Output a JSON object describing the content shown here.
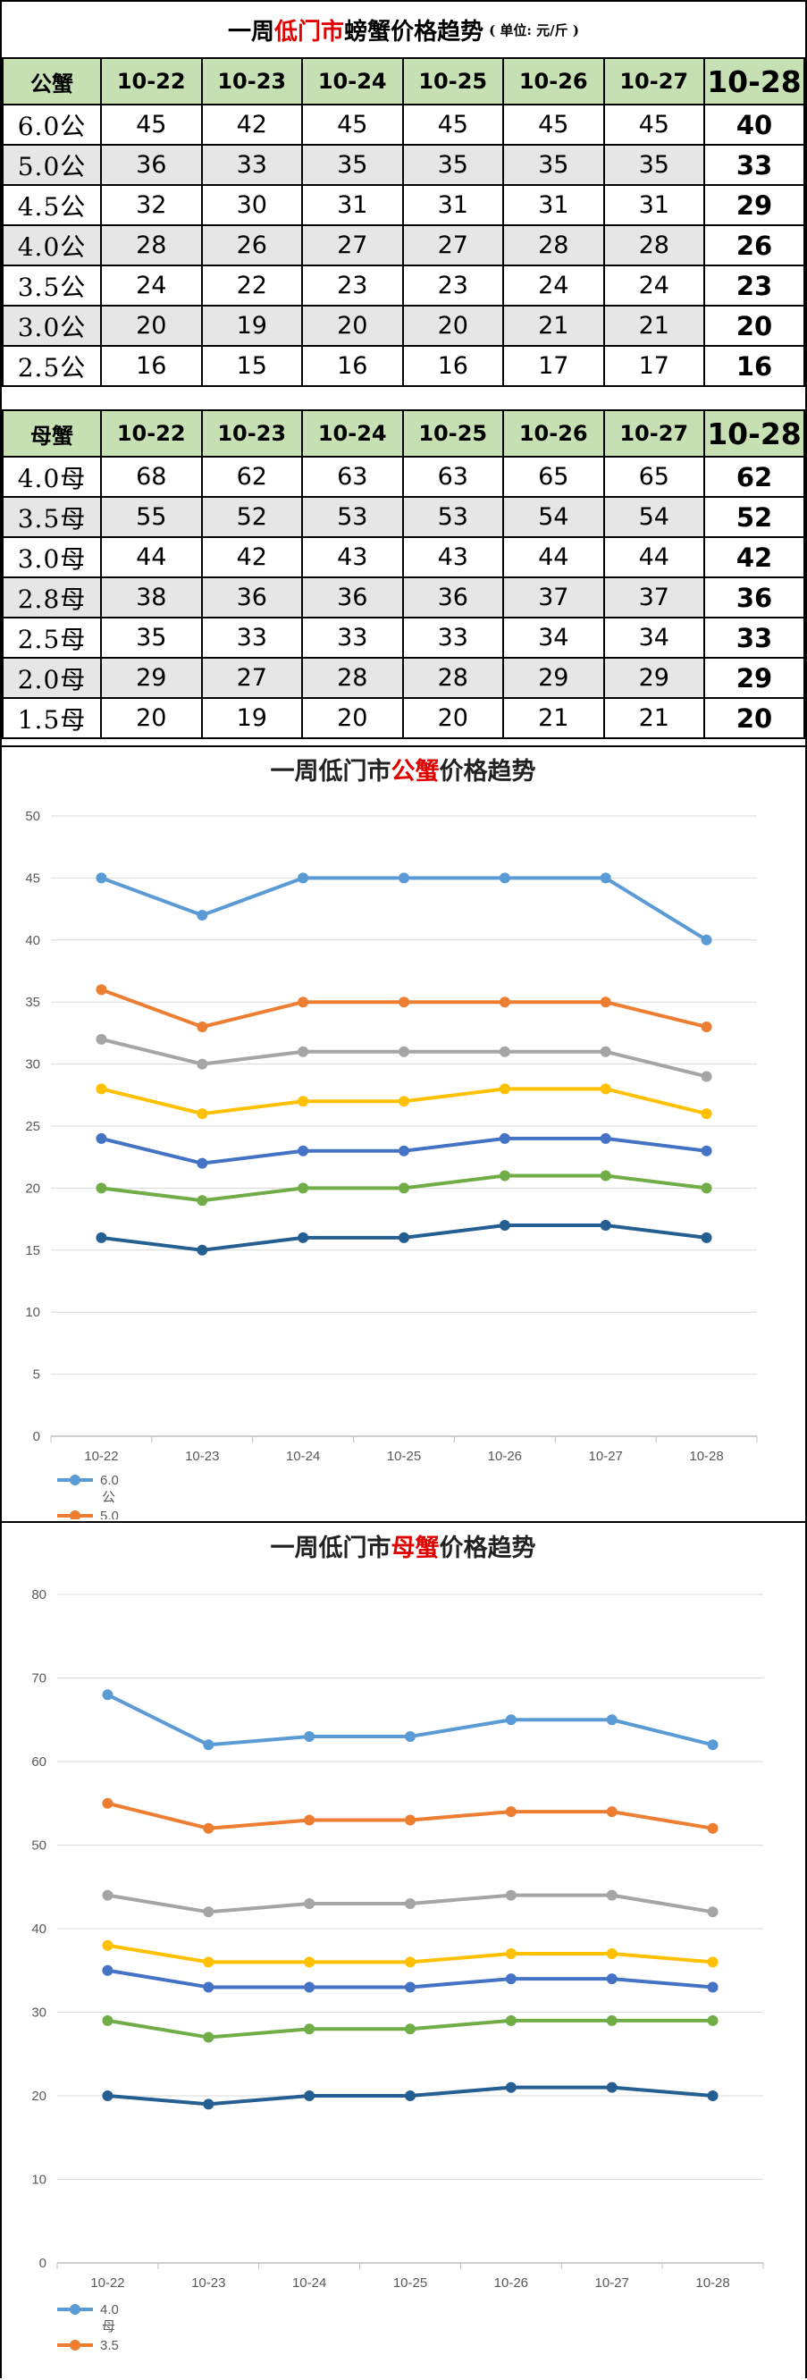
{
  "title": {
    "part1": "一周",
    "part2": "低门市",
    "part3": "螃蟹价格趋势",
    "unit": "( 单位: 元/斤 )"
  },
  "male_table": {
    "header_label": "公蟹",
    "dates": [
      "10-22",
      "10-23",
      "10-24",
      "10-25",
      "10-26",
      "10-27",
      "10-28"
    ],
    "rows": [
      {
        "label": "6.0公",
        "values": [
          45,
          42,
          45,
          45,
          45,
          45,
          40
        ]
      },
      {
        "label": "5.0公",
        "values": [
          36,
          33,
          35,
          35,
          35,
          35,
          33
        ]
      },
      {
        "label": "4.5公",
        "values": [
          32,
          30,
          31,
          31,
          31,
          31,
          29
        ]
      },
      {
        "label": "4.0公",
        "values": [
          28,
          26,
          27,
          27,
          28,
          28,
          26
        ]
      },
      {
        "label": "3.5公",
        "values": [
          24,
          22,
          23,
          23,
          24,
          24,
          23
        ]
      },
      {
        "label": "3.0公",
        "values": [
          20,
          19,
          20,
          20,
          21,
          21,
          20
        ]
      },
      {
        "label": "2.5公",
        "values": [
          16,
          15,
          16,
          16,
          17,
          17,
          16
        ]
      }
    ]
  },
  "female_table": {
    "header_label": "母蟹",
    "dates": [
      "10-22",
      "10-23",
      "10-24",
      "10-25",
      "10-26",
      "10-27",
      "10-28"
    ],
    "rows": [
      {
        "label": "4.0母",
        "values": [
          68,
          62,
          63,
          63,
          65,
          65,
          62
        ]
      },
      {
        "label": "3.5母",
        "values": [
          55,
          52,
          53,
          53,
          54,
          54,
          52
        ]
      },
      {
        "label": "3.0母",
        "values": [
          44,
          42,
          43,
          43,
          44,
          44,
          42
        ]
      },
      {
        "label": "2.8母",
        "values": [
          38,
          36,
          36,
          36,
          37,
          37,
          36
        ]
      },
      {
        "label": "2.5母",
        "values": [
          35,
          33,
          33,
          33,
          34,
          34,
          33
        ]
      },
      {
        "label": "2.0母",
        "values": [
          29,
          27,
          28,
          28,
          29,
          29,
          29
        ]
      },
      {
        "label": "1.5母",
        "values": [
          20,
          19,
          20,
          20,
          21,
          21,
          20
        ]
      }
    ]
  },
  "chart_data": [
    {
      "type": "line",
      "title_parts": [
        "一周低门市",
        "公蟹",
        "价格趋势"
      ],
      "categories": [
        "10-22",
        "10-23",
        "10-24",
        "10-25",
        "10-26",
        "10-27",
        "10-28"
      ],
      "ylim": [
        0,
        50
      ],
      "yticks": [
        0,
        5,
        10,
        15,
        20,
        25,
        30,
        35,
        40,
        45,
        50
      ],
      "grid": true,
      "legend_position": "bottom-left",
      "legend_visible": [
        {
          "line1": "6.0",
          "line2": "公"
        },
        {
          "line1": "5.0",
          "line2": ""
        }
      ],
      "series": [
        {
          "name": "6.0公",
          "color": "#5b9bd5",
          "values": [
            45,
            42,
            45,
            45,
            45,
            45,
            40
          ]
        },
        {
          "name": "5.0公",
          "color": "#ed7d31",
          "values": [
            36,
            33,
            35,
            35,
            35,
            35,
            33
          ]
        },
        {
          "name": "4.5公",
          "color": "#a5a5a5",
          "values": [
            32,
            30,
            31,
            31,
            31,
            31,
            29
          ]
        },
        {
          "name": "4.0公",
          "color": "#ffc000",
          "values": [
            28,
            26,
            27,
            27,
            28,
            28,
            26
          ]
        },
        {
          "name": "3.5公",
          "color": "#4472c4",
          "values": [
            24,
            22,
            23,
            23,
            24,
            24,
            23
          ]
        },
        {
          "name": "3.0公",
          "color": "#70ad47",
          "values": [
            20,
            19,
            20,
            20,
            21,
            21,
            20
          ]
        },
        {
          "name": "2.5公",
          "color": "#255e91",
          "values": [
            16,
            15,
            16,
            16,
            17,
            17,
            16
          ]
        }
      ]
    },
    {
      "type": "line",
      "title_parts": [
        "一周低门市",
        "母蟹",
        "价格趋势"
      ],
      "categories": [
        "10-22",
        "10-23",
        "10-24",
        "10-25",
        "10-26",
        "10-27",
        "10-28"
      ],
      "ylim": [
        0,
        80
      ],
      "yticks": [
        0,
        10,
        20,
        30,
        40,
        50,
        60,
        70,
        80
      ],
      "grid": true,
      "legend_position": "bottom-left",
      "legend_visible": [
        {
          "line1": "4.0",
          "line2": "母"
        },
        {
          "line1": "3.5",
          "line2": ""
        }
      ],
      "series": [
        {
          "name": "4.0母",
          "color": "#5b9bd5",
          "values": [
            68,
            62,
            63,
            63,
            65,
            65,
            62
          ]
        },
        {
          "name": "3.5母",
          "color": "#ed7d31",
          "values": [
            55,
            52,
            53,
            53,
            54,
            54,
            52
          ]
        },
        {
          "name": "3.0母",
          "color": "#a5a5a5",
          "values": [
            44,
            42,
            43,
            43,
            44,
            44,
            42
          ]
        },
        {
          "name": "2.8母",
          "color": "#ffc000",
          "values": [
            38,
            36,
            36,
            36,
            37,
            37,
            36
          ]
        },
        {
          "name": "2.5母",
          "color": "#4472c4",
          "values": [
            35,
            33,
            33,
            33,
            34,
            34,
            33
          ]
        },
        {
          "name": "2.0母",
          "color": "#70ad47",
          "values": [
            29,
            27,
            28,
            28,
            29,
            29,
            29
          ]
        },
        {
          "name": "1.5母",
          "color": "#255e91",
          "values": [
            20,
            19,
            20,
            20,
            21,
            21,
            20
          ]
        }
      ]
    }
  ]
}
